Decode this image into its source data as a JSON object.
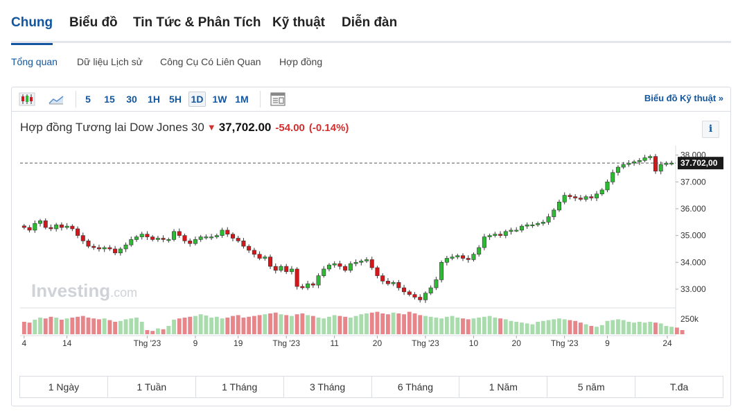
{
  "top_tabs": [
    {
      "label": "Chung",
      "active": true
    },
    {
      "label": "Biểu đồ",
      "active": false
    },
    {
      "label": "Tin Tức & Phân Tích",
      "active": false
    },
    {
      "label": "Kỹ thuật",
      "active": false
    },
    {
      "label": "Diễn đàn",
      "active": false
    }
  ],
  "sub_tabs": [
    {
      "label": "Tổng quan",
      "active": true
    },
    {
      "label": "Dữ liệu Lịch sử",
      "active": false
    },
    {
      "label": "Công Cụ Có Liên Quan",
      "active": false
    },
    {
      "label": "Hợp đồng",
      "active": false
    }
  ],
  "toolbar": {
    "chart_type_icons": [
      "candlestick-icon",
      "area-chart-icon"
    ],
    "timeframes": [
      {
        "label": "5",
        "active": false
      },
      {
        "label": "15",
        "active": false
      },
      {
        "label": "30",
        "active": false
      },
      {
        "label": "1H",
        "active": false
      },
      {
        "label": "5H",
        "active": false
      },
      {
        "label": "1D",
        "active": true
      },
      {
        "label": "1W",
        "active": false
      },
      {
        "label": "1M",
        "active": false
      }
    ],
    "layout_icon": "layout-icon",
    "technical_link": "Biểu đồ Kỹ thuật »"
  },
  "instrument": {
    "name": "Hợp đồng Tương lai Dow Jones 30",
    "price": "37,702.00",
    "change": "-54.00",
    "change_pct": "(-0.14%)",
    "info_label": "i"
  },
  "watermark": {
    "brand": "Investing",
    "suffix": ".com"
  },
  "colors": {
    "up": "#2dbb33",
    "down": "#d3171b",
    "vol_up": "#a9dcad",
    "vol_down": "#e6868a",
    "accent": "#1256a0"
  },
  "chart_data": {
    "type": "candlestick",
    "current_price_label": "37.702,00",
    "current_price": 37702,
    "ylim": [
      32300,
      38250
    ],
    "y_ticks": [
      {
        "value": 33000,
        "label": "33.000"
      },
      {
        "value": 34000,
        "label": "34.000"
      },
      {
        "value": 35000,
        "label": "35.000"
      },
      {
        "value": 36000,
        "label": "36.000"
      },
      {
        "value": 37000,
        "label": "37.000"
      },
      {
        "value": 38000,
        "label": "38.000"
      }
    ],
    "volume_tick_label": "250k",
    "x_ticks": [
      {
        "index": 0,
        "label": "4"
      },
      {
        "index": 8,
        "label": "14"
      },
      {
        "index": 23,
        "label": "Thg '23"
      },
      {
        "index": 32,
        "label": "9"
      },
      {
        "index": 40,
        "label": "19"
      },
      {
        "index": 49,
        "label": "Thg '23"
      },
      {
        "index": 58,
        "label": "11"
      },
      {
        "index": 66,
        "label": "20"
      },
      {
        "index": 75,
        "label": "Thg '23"
      },
      {
        "index": 84,
        "label": "10"
      },
      {
        "index": 92,
        "label": "20"
      },
      {
        "index": 101,
        "label": "Thg '23"
      },
      {
        "index": 109,
        "label": "9"
      },
      {
        "index": 123,
        "label": "24"
      }
    ],
    "closes": [
      35300,
      35200,
      35450,
      35550,
      35300,
      35250,
      35400,
      35300,
      35350,
      35250,
      35000,
      34800,
      34600,
      34550,
      34500,
      34550,
      34500,
      34350,
      34500,
      34650,
      34850,
      34950,
      35050,
      34950,
      34850,
      34900,
      34850,
      34850,
      35150,
      35000,
      34800,
      34700,
      34850,
      34950,
      34950,
      34950,
      35000,
      35200,
      35050,
      34900,
      34800,
      34600,
      34450,
      34300,
      34150,
      34200,
      33850,
      33700,
      33850,
      33650,
      33750,
      33100,
      33050,
      33200,
      33150,
      33500,
      33750,
      33900,
      33950,
      33850,
      33700,
      33950,
      34000,
      34050,
      34100,
      33800,
      33500,
      33300,
      33200,
      33250,
      33050,
      32900,
      32800,
      32700,
      32600,
      32850,
      33050,
      33350,
      34000,
      34150,
      34200,
      34250,
      34150,
      34100,
      34300,
      34550,
      34950,
      35000,
      35050,
      35000,
      35150,
      35200,
      35200,
      35350,
      35400,
      35400,
      35450,
      35500,
      35700,
      35950,
      36250,
      36500,
      36450,
      36400,
      36350,
      36450,
      36400,
      36550,
      36700,
      37000,
      37350,
      37550,
      37650,
      37700,
      37750,
      37800,
      37900,
      37950,
      37400,
      37650,
      37700,
      37702
    ],
    "volume": [
      30,
      28,
      35,
      40,
      38,
      42,
      40,
      35,
      38,
      40,
      42,
      44,
      40,
      38,
      36,
      38,
      34,
      30,
      32,
      36,
      38,
      40,
      30,
      10,
      8,
      14,
      12,
      20,
      35,
      38,
      40,
      42,
      44,
      48,
      45,
      40,
      42,
      38,
      40,
      44,
      46,
      40,
      42,
      44,
      46,
      48,
      50,
      52,
      48,
      46,
      44,
      48,
      50,
      46,
      44,
      40,
      38,
      42,
      46,
      44,
      42,
      40,
      44,
      48,
      50,
      52,
      54,
      50,
      48,
      52,
      50,
      48,
      54,
      50,
      46,
      44,
      42,
      40,
      38,
      42,
      44,
      40,
      38,
      36,
      38,
      40,
      42,
      44,
      40,
      38,
      36,
      32,
      30,
      28,
      26,
      24,
      30,
      32,
      34,
      36,
      38,
      36,
      34,
      32,
      28,
      24,
      20,
      18,
      22,
      32,
      34,
      36,
      34,
      30,
      28,
      30,
      28,
      30,
      28,
      26,
      20,
      18,
      16,
      10
    ]
  },
  "ranges": [
    "1 Ngày",
    "1 Tuần",
    "1 Tháng",
    "3 Tháng",
    "6 Tháng",
    "1 Năm",
    "5 năm",
    "T.đa"
  ]
}
